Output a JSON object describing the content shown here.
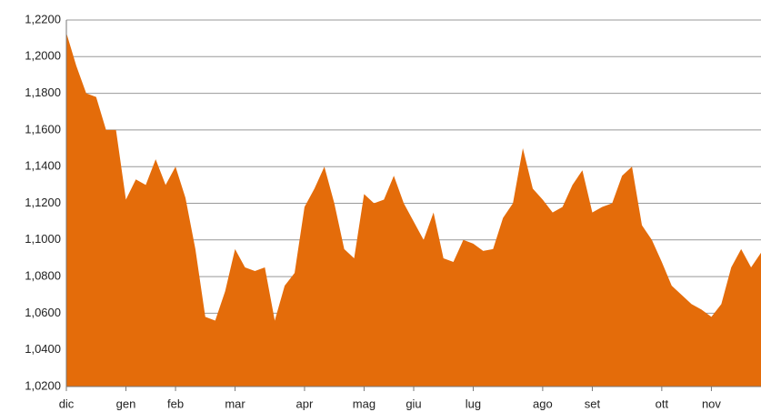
{
  "chart_data": {
    "type": "area",
    "color": "#e46c0a",
    "grid": true,
    "categories": [
      "dic",
      null,
      null,
      null,
      null,
      null,
      "gen",
      null,
      null,
      null,
      null,
      "feb",
      null,
      null,
      null,
      null,
      null,
      "mar",
      null,
      null,
      null,
      null,
      null,
      null,
      "apr",
      null,
      null,
      null,
      null,
      null,
      "mag",
      null,
      null,
      null,
      null,
      "giu",
      null,
      null,
      null,
      null,
      null,
      "lug",
      null,
      null,
      null,
      null,
      null,
      null,
      "ago",
      null,
      null,
      null,
      null,
      "set",
      null,
      null,
      null,
      null,
      null,
      null,
      "ott",
      null,
      null,
      null,
      null,
      "nov",
      null,
      null,
      null,
      null,
      null
    ],
    "values": [
      1.213,
      1.195,
      1.18,
      1.178,
      1.16,
      1.16,
      1.122,
      1.133,
      1.13,
      1.144,
      1.13,
      1.14,
      1.123,
      1.095,
      1.058,
      1.056,
      1.072,
      1.095,
      1.085,
      1.083,
      1.085,
      1.056,
      1.075,
      1.082,
      1.118,
      1.128,
      1.14,
      1.12,
      1.095,
      1.09,
      1.125,
      1.12,
      1.122,
      1.135,
      1.12,
      1.11,
      1.1,
      1.115,
      1.09,
      1.088,
      1.1,
      1.098,
      1.094,
      1.095,
      1.112,
      1.12,
      1.15,
      1.128,
      1.122,
      1.115,
      1.118,
      1.13,
      1.138,
      1.115,
      1.118,
      1.12,
      1.135,
      1.14,
      1.108,
      1.1,
      1.088,
      1.075,
      1.07,
      1.065,
      1.062,
      1.058,
      1.065,
      1.085,
      1.095,
      1.085,
      1.093
    ],
    "ylim": [
      1.02,
      1.22
    ],
    "yticks": [
      {
        "value": 1.02,
        "label": "1,0200"
      },
      {
        "value": 1.04,
        "label": "1,0400"
      },
      {
        "value": 1.06,
        "label": "1,0600"
      },
      {
        "value": 1.08,
        "label": "1,0800"
      },
      {
        "value": 1.1,
        "label": "1,1000"
      },
      {
        "value": 1.12,
        "label": "1,1200"
      },
      {
        "value": 1.14,
        "label": "1,1400"
      },
      {
        "value": 1.16,
        "label": "1,1600"
      },
      {
        "value": 1.18,
        "label": "1,1800"
      },
      {
        "value": 1.2,
        "label": "1,2000"
      },
      {
        "value": 1.22,
        "label": "1,2200"
      }
    ]
  }
}
